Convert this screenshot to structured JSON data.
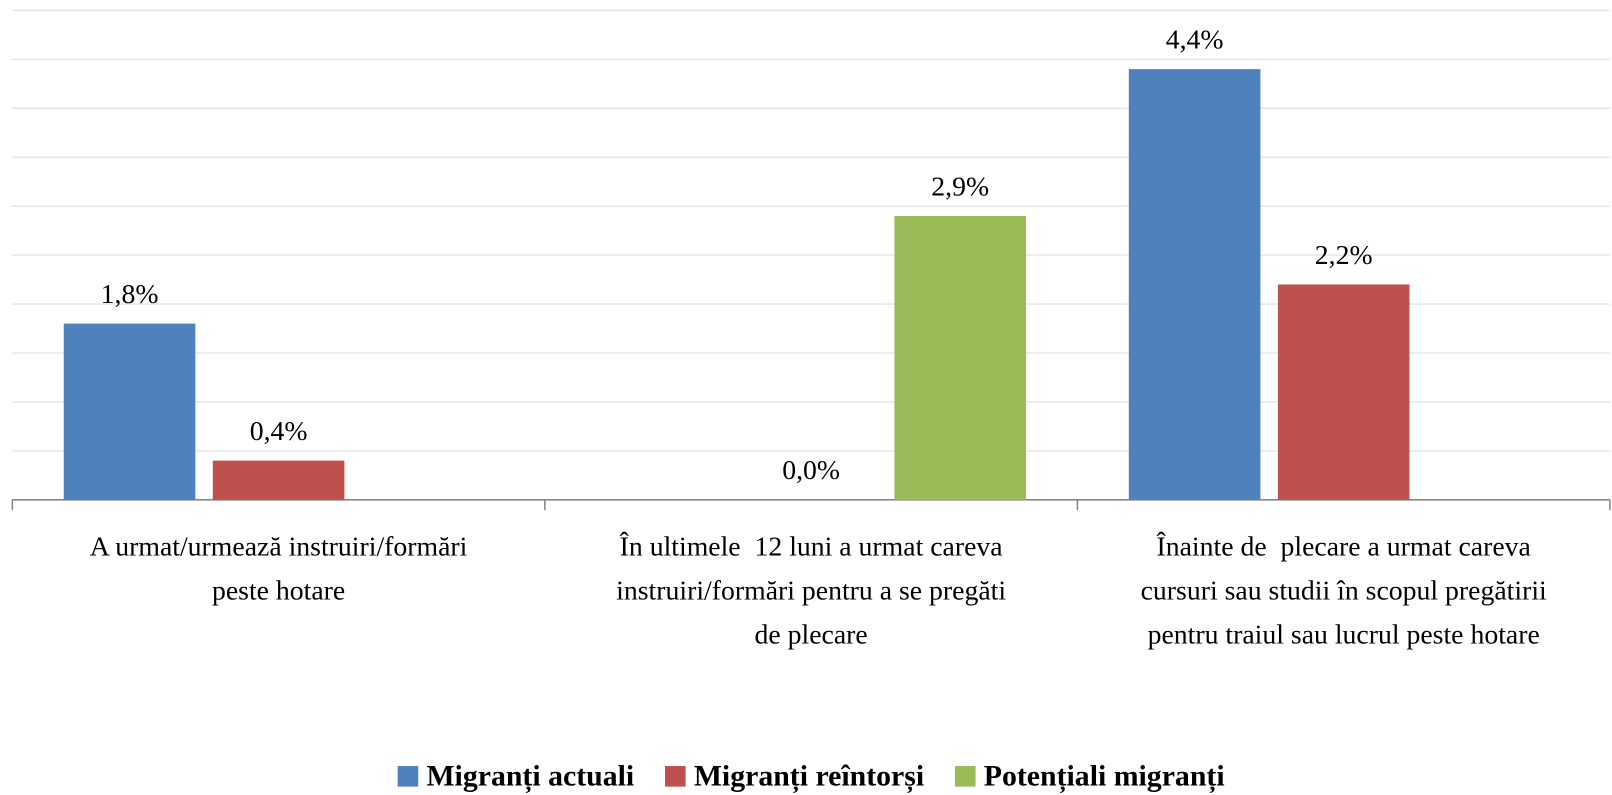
{
  "chart_data": {
    "type": "bar",
    "categories": [
      "A urmat/urmează instruiri/formări\npeste hotare",
      "În ultimele  12 luni a urmat careva\ninstruiri/formări pentru a se pregăti\nde plecare",
      "Înainte de  plecare a urmat careva\ncursuri sau studii în scopul pregătirii\npentru traiul sau lucrul peste hotare"
    ],
    "series": [
      {
        "name": "Migranți actuali",
        "color": "#4f81bd",
        "values": [
          1.8,
          null,
          4.4
        ],
        "value_labels": [
          "1,8%",
          null,
          "4,4%"
        ]
      },
      {
        "name": "Migranți reîntorși",
        "color": "#c0504d",
        "values": [
          0.4,
          0.0,
          2.2
        ],
        "value_labels": [
          "0,4%",
          "0,0%",
          "2,2%"
        ]
      },
      {
        "name": "Potențiali migranți",
        "color": "#9bbb59",
        "values": [
          null,
          2.9,
          null
        ],
        "value_labels": [
          null,
          "2,9%",
          null
        ]
      }
    ],
    "ylim": [
      0,
      5
    ],
    "yticks": [
      0,
      0.5,
      1,
      1.5,
      2,
      2.5,
      3,
      3.5,
      4,
      4.5,
      5
    ],
    "grid": true,
    "legend": "bottom"
  }
}
